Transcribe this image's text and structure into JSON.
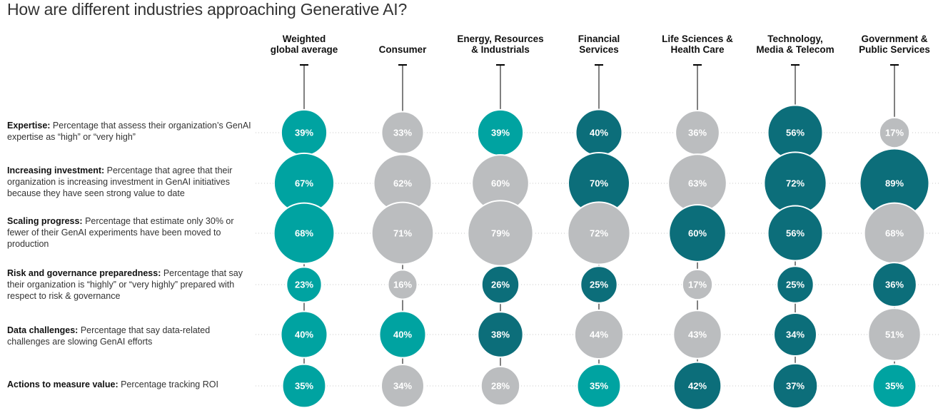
{
  "chart_data": {
    "type": "bubble-matrix",
    "title": "How are different industries approaching Generative AI?",
    "columns": [
      "Weighted\nglobal average",
      "Consumer",
      "Energy, Resources\n& Industrials",
      "Financial\nServices",
      "Life Sciences &\nHealth Care",
      "Technology,\nMedia & Telecom",
      "Government &\nPublic Services"
    ],
    "rows": [
      {
        "name": "Expertise:",
        "desc": " Percentage that assess their organization’s GenAI expertise as “high” or “very high”",
        "values": [
          39,
          33,
          39,
          40,
          36,
          56,
          17
        ],
        "categories": [
          "teal",
          "gray",
          "teal",
          "dark",
          "gray",
          "dark",
          "gray"
        ]
      },
      {
        "name": "Increasing investment:",
        "desc": " Percentage that agree that their organization is increasing investment in GenAI initiatives because they have seen strong value to date",
        "values": [
          67,
          62,
          60,
          70,
          63,
          72,
          89
        ],
        "categories": [
          "teal",
          "gray",
          "gray",
          "dark",
          "gray",
          "dark",
          "dark"
        ]
      },
      {
        "name": "Scaling progress:",
        "desc": " Percentage that estimate only 30% or fewer of their GenAI experiments have been moved to production",
        "values": [
          68,
          71,
          79,
          72,
          60,
          56,
          68
        ],
        "categories": [
          "teal",
          "gray",
          "gray",
          "gray",
          "dark",
          "dark",
          "gray"
        ]
      },
      {
        "name": "Risk and governance preparedness:",
        "desc": " Percentage that say their organization is “highly” or “very highly”  prepared with respect to risk & governance",
        "values": [
          23,
          16,
          26,
          25,
          17,
          25,
          36
        ],
        "categories": [
          "teal",
          "gray",
          "dark",
          "dark",
          "gray",
          "dark",
          "dark"
        ]
      },
      {
        "name": "Data challenges:",
        "desc": " Percentage that say data-related challenges are slowing GenAI efforts",
        "values": [
          40,
          40,
          38,
          44,
          43,
          34,
          51
        ],
        "categories": [
          "teal",
          "teal",
          "dark",
          "gray",
          "gray",
          "dark",
          "gray"
        ]
      },
      {
        "name": "Actions to measure value:",
        "desc": " Percentage tracking ROI",
        "values": [
          35,
          34,
          28,
          35,
          42,
          37,
          35
        ],
        "categories": [
          "teal",
          "gray",
          "gray",
          "teal",
          "dark",
          "dark",
          "teal"
        ]
      }
    ],
    "value_suffix": "%",
    "colors": {
      "teal": "#00A3A1",
      "dark": "#0C6E7A",
      "gray": "#BBBDBF",
      "line": "#000000",
      "dots": "#C8C8C8"
    }
  }
}
